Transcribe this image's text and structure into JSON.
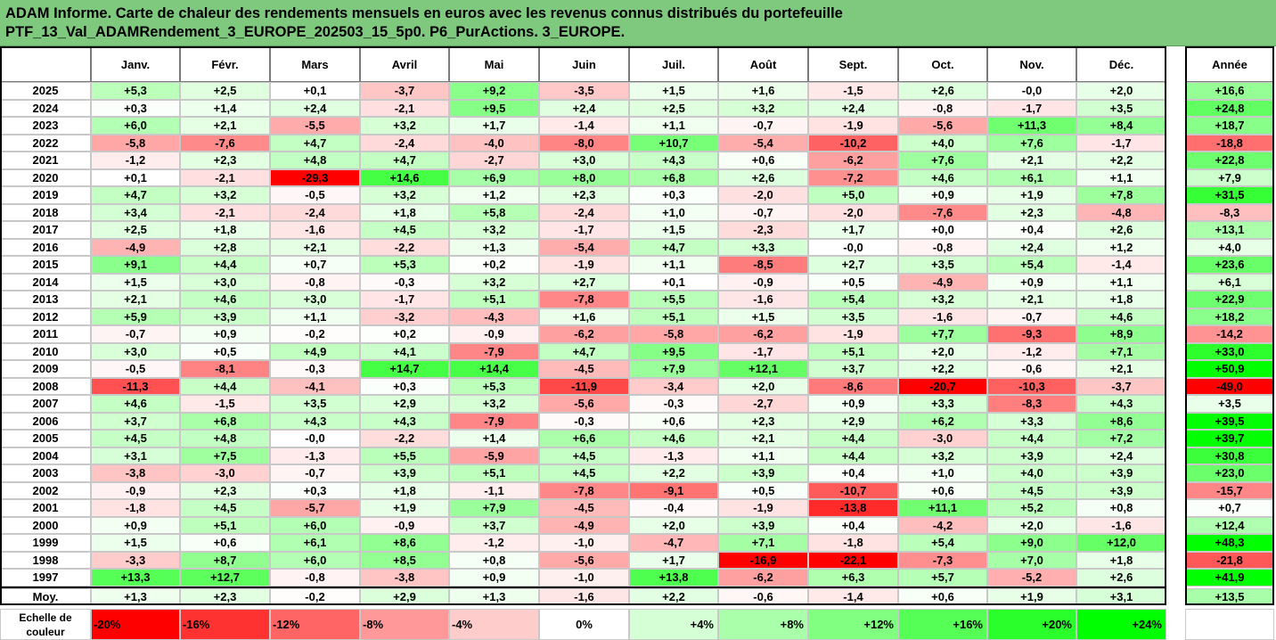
{
  "title": {
    "line1": "ADAM Informe. Carte de chaleur des rendements mensuels en euros avec les revenus connus distribués du portefeuille",
    "line2": "PTF_13_Val_ADAMRendement_3_EUROPE_202503_15_5p0. P6_PurActions. 3_EUROPE."
  },
  "chart_data": {
    "type": "heatmap",
    "columns": [
      "Janv.",
      "Févr.",
      "Mars",
      "Avril",
      "Mai",
      "Juin",
      "Juil.",
      "Août",
      "Sept.",
      "Oct.",
      "Nov.",
      "Déc."
    ],
    "annual_column": "Année",
    "rows": [
      {
        "year": "2025",
        "months": [
          "+5,3",
          "+2,5",
          "+0,1",
          "-3,7",
          "+9,2",
          "-3,5",
          "+1,5",
          "+1,6",
          "-1,5",
          "+2,6",
          "-0,0",
          "+2,0"
        ],
        "annee": "+16,6"
      },
      {
        "year": "2024",
        "months": [
          "+0,3",
          "+1,4",
          "+2,4",
          "-2,1",
          "+9,5",
          "+2,4",
          "+2,5",
          "+3,2",
          "+2,4",
          "-0,8",
          "-1,7",
          "+3,5"
        ],
        "annee": "+24,8"
      },
      {
        "year": "2023",
        "months": [
          "+6,0",
          "+2,1",
          "-5,5",
          "+3,2",
          "+1,7",
          "-1,4",
          "+1,1",
          "-0,7",
          "-1,9",
          "-5,6",
          "+11,3",
          "+8,4"
        ],
        "annee": "+18,7"
      },
      {
        "year": "2022",
        "months": [
          "-5,8",
          "-7,6",
          "+4,7",
          "-2,4",
          "-4,0",
          "-8,0",
          "+10,7",
          "-5,4",
          "-10,2",
          "+4,0",
          "+7,6",
          "-1,7"
        ],
        "annee": "-18,8"
      },
      {
        "year": "2021",
        "months": [
          "-1,2",
          "+2,3",
          "+4,8",
          "+4,7",
          "-2,7",
          "+3,0",
          "+4,3",
          "+0,6",
          "-6,2",
          "+7,6",
          "+2,1",
          "+2,2"
        ],
        "annee": "+22,8"
      },
      {
        "year": "2020",
        "months": [
          "+0,1",
          "-2,1",
          "-29,3",
          "+14,6",
          "+6,9",
          "+8,0",
          "+6,8",
          "+2,6",
          "-7,2",
          "+4,6",
          "+6,1",
          "+1,1"
        ],
        "annee": "+7,9"
      },
      {
        "year": "2019",
        "months": [
          "+4,7",
          "+3,2",
          "-0,5",
          "+3,2",
          "+1,2",
          "+2,3",
          "+0,3",
          "-2,0",
          "+5,0",
          "+0,9",
          "+1,9",
          "+7,8"
        ],
        "annee": "+31,5"
      },
      {
        "year": "2018",
        "months": [
          "+3,4",
          "-2,1",
          "-2,4",
          "+1,8",
          "+5,8",
          "-2,4",
          "+1,0",
          "-0,7",
          "-2,0",
          "-7,6",
          "+2,3",
          "-4,8"
        ],
        "annee": "-8,3"
      },
      {
        "year": "2017",
        "months": [
          "+2,5",
          "+1,8",
          "-1,6",
          "+4,5",
          "+3,2",
          "-1,7",
          "+1,5",
          "-2,3",
          "+1,7",
          "+0,0",
          "+0,4",
          "+2,6"
        ],
        "annee": "+13,1"
      },
      {
        "year": "2016",
        "months": [
          "-4,9",
          "+2,8",
          "+2,1",
          "-2,2",
          "+1,3",
          "-5,4",
          "+4,7",
          "+3,3",
          "-0,0",
          "-0,8",
          "+2,4",
          "+1,2"
        ],
        "annee": "+4,0"
      },
      {
        "year": "2015",
        "months": [
          "+9,1",
          "+4,4",
          "+0,7",
          "+5,3",
          "+0,2",
          "-1,9",
          "+1,1",
          "-8,5",
          "+2,7",
          "+3,5",
          "+5,4",
          "-1,4"
        ],
        "annee": "+23,6"
      },
      {
        "year": "2014",
        "months": [
          "+1,5",
          "+3,0",
          "-0,8",
          "-0,3",
          "+3,2",
          "+2,7",
          "+0,1",
          "-0,9",
          "+0,5",
          "-4,9",
          "+0,9",
          "+1,1"
        ],
        "annee": "+6,1"
      },
      {
        "year": "2013",
        "months": [
          "+2,1",
          "+4,6",
          "+3,0",
          "-1,7",
          "+5,1",
          "-7,8",
          "+5,5",
          "-1,6",
          "+5,4",
          "+3,2",
          "+2,1",
          "+1,8"
        ],
        "annee": "+22,9"
      },
      {
        "year": "2012",
        "months": [
          "+5,9",
          "+3,9",
          "+1,1",
          "-3,2",
          "-4,3",
          "+1,6",
          "+5,1",
          "+1,5",
          "+3,5",
          "-1,6",
          "-0,7",
          "+4,6"
        ],
        "annee": "+18,2"
      },
      {
        "year": "2011",
        "months": [
          "-0,7",
          "+0,9",
          "-0,2",
          "+0,2",
          "-0,9",
          "-6,2",
          "-5,8",
          "-6,2",
          "-1,9",
          "+7,7",
          "-9,3",
          "+8,9"
        ],
        "annee": "-14,2"
      },
      {
        "year": "2010",
        "months": [
          "+3,0",
          "+0,5",
          "+4,9",
          "+4,1",
          "-7,9",
          "+4,7",
          "+9,5",
          "-1,7",
          "+5,1",
          "+2,0",
          "-1,2",
          "+7,1"
        ],
        "annee": "+33,0"
      },
      {
        "year": "2009",
        "months": [
          "-0,5",
          "-8,1",
          "-0,3",
          "+14,7",
          "+14,4",
          "-4,5",
          "+7,9",
          "+12,1",
          "+3,7",
          "+2,2",
          "-0,6",
          "+2,1"
        ],
        "annee": "+50,9"
      },
      {
        "year": "2008",
        "months": [
          "-11,3",
          "+4,4",
          "-4,1",
          "+0,3",
          "+5,3",
          "-11,9",
          "-3,4",
          "+2,0",
          "-8,6",
          "-20,7",
          "-10,3",
          "-3,7"
        ],
        "annee": "-49,0"
      },
      {
        "year": "2007",
        "months": [
          "+4,6",
          "-1,5",
          "+3,5",
          "+2,9",
          "+3,2",
          "-5,6",
          "-0,3",
          "-2,7",
          "+0,9",
          "+3,3",
          "-8,3",
          "+4,3"
        ],
        "annee": "+3,5"
      },
      {
        "year": "2006",
        "months": [
          "+3,7",
          "+6,8",
          "+4,3",
          "+4,3",
          "-7,9",
          "-0,3",
          "+0,6",
          "+2,3",
          "+2,9",
          "+6,2",
          "+3,3",
          "+8,6"
        ],
        "annee": "+39,5"
      },
      {
        "year": "2005",
        "months": [
          "+4,5",
          "+4,8",
          "-0,0",
          "-2,2",
          "+1,4",
          "+6,6",
          "+4,6",
          "+2,1",
          "+4,4",
          "-3,0",
          "+4,4",
          "+7,2"
        ],
        "annee": "+39,7"
      },
      {
        "year": "2004",
        "months": [
          "+3,1",
          "+7,5",
          "-1,3",
          "+5,5",
          "-5,9",
          "+4,5",
          "-1,3",
          "+1,1",
          "+4,4",
          "+3,2",
          "+3,9",
          "+2,4"
        ],
        "annee": "+30,8"
      },
      {
        "year": "2003",
        "months": [
          "-3,8",
          "-3,0",
          "-0,7",
          "+3,9",
          "+5,1",
          "+4,5",
          "+2,2",
          "+3,9",
          "+0,4",
          "+1,0",
          "+4,0",
          "+3,9"
        ],
        "annee": "+23,0"
      },
      {
        "year": "2002",
        "months": [
          "-0,9",
          "+2,3",
          "+0,3",
          "+1,8",
          "-1,1",
          "-7,8",
          "-9,1",
          "+0,5",
          "-10,7",
          "+0,6",
          "+4,5",
          "+3,9"
        ],
        "annee": "-15,7"
      },
      {
        "year": "2001",
        "months": [
          "-1,8",
          "+4,5",
          "-5,7",
          "+1,9",
          "+7,9",
          "-4,5",
          "-0,4",
          "-1,9",
          "-13,8",
          "+11,1",
          "+5,2",
          "+0,8"
        ],
        "annee": "+0,7"
      },
      {
        "year": "2000",
        "months": [
          "+0,9",
          "+5,1",
          "+6,0",
          "-0,9",
          "+3,7",
          "-4,9",
          "+2,0",
          "+3,9",
          "+0,4",
          "-4,2",
          "+2,0",
          "-1,6"
        ],
        "annee": "+12,4"
      },
      {
        "year": "1999",
        "months": [
          "+1,5",
          "+0,6",
          "+6,1",
          "+8,6",
          "-1,2",
          "-1,0",
          "-4,7",
          "+7,1",
          "-1,8",
          "+5,4",
          "+9,0",
          "+12,0"
        ],
        "annee": "+48,3"
      },
      {
        "year": "1998",
        "months": [
          "-3,3",
          "+8,7",
          "+6,0",
          "+8,5",
          "+0,8",
          "-5,6",
          "+1,7",
          "-16,9",
          "-22,1",
          "-7,3",
          "+7,0",
          "+1,8"
        ],
        "annee": "-21,8"
      },
      {
        "year": "1997",
        "months": [
          "+13,3",
          "+12,7",
          "-0,8",
          "-3,8",
          "+0,9",
          "-1,0",
          "+13,8",
          "-6,2",
          "+6,3",
          "+5,7",
          "-5,2",
          "+2,6"
        ],
        "annee": "+41,9"
      }
    ],
    "average": {
      "label": "Moy.",
      "months": [
        "+1,3",
        "+2,3",
        "-0,2",
        "+2,9",
        "+1,3",
        "-1,6",
        "+2,2",
        "-0,6",
        "-1,4",
        "+0,6",
        "+1,9",
        "+3,1"
      ],
      "annee": "+13,5"
    },
    "color_scale": {
      "label": "Echelle de couleur",
      "stops": [
        "-20%",
        "-16%",
        "-12%",
        "-8%",
        "-4%",
        "0%",
        "+4%",
        "+8%",
        "+12%",
        "+16%",
        "+20%",
        "+24%"
      ],
      "stop_values": [
        -20,
        -16,
        -12,
        -8,
        -4,
        0,
        4,
        8,
        12,
        16,
        20,
        24
      ],
      "negative_color": "#ff0000",
      "positive_color": "#00ff00",
      "neutral_color": "#ffffff"
    }
  }
}
